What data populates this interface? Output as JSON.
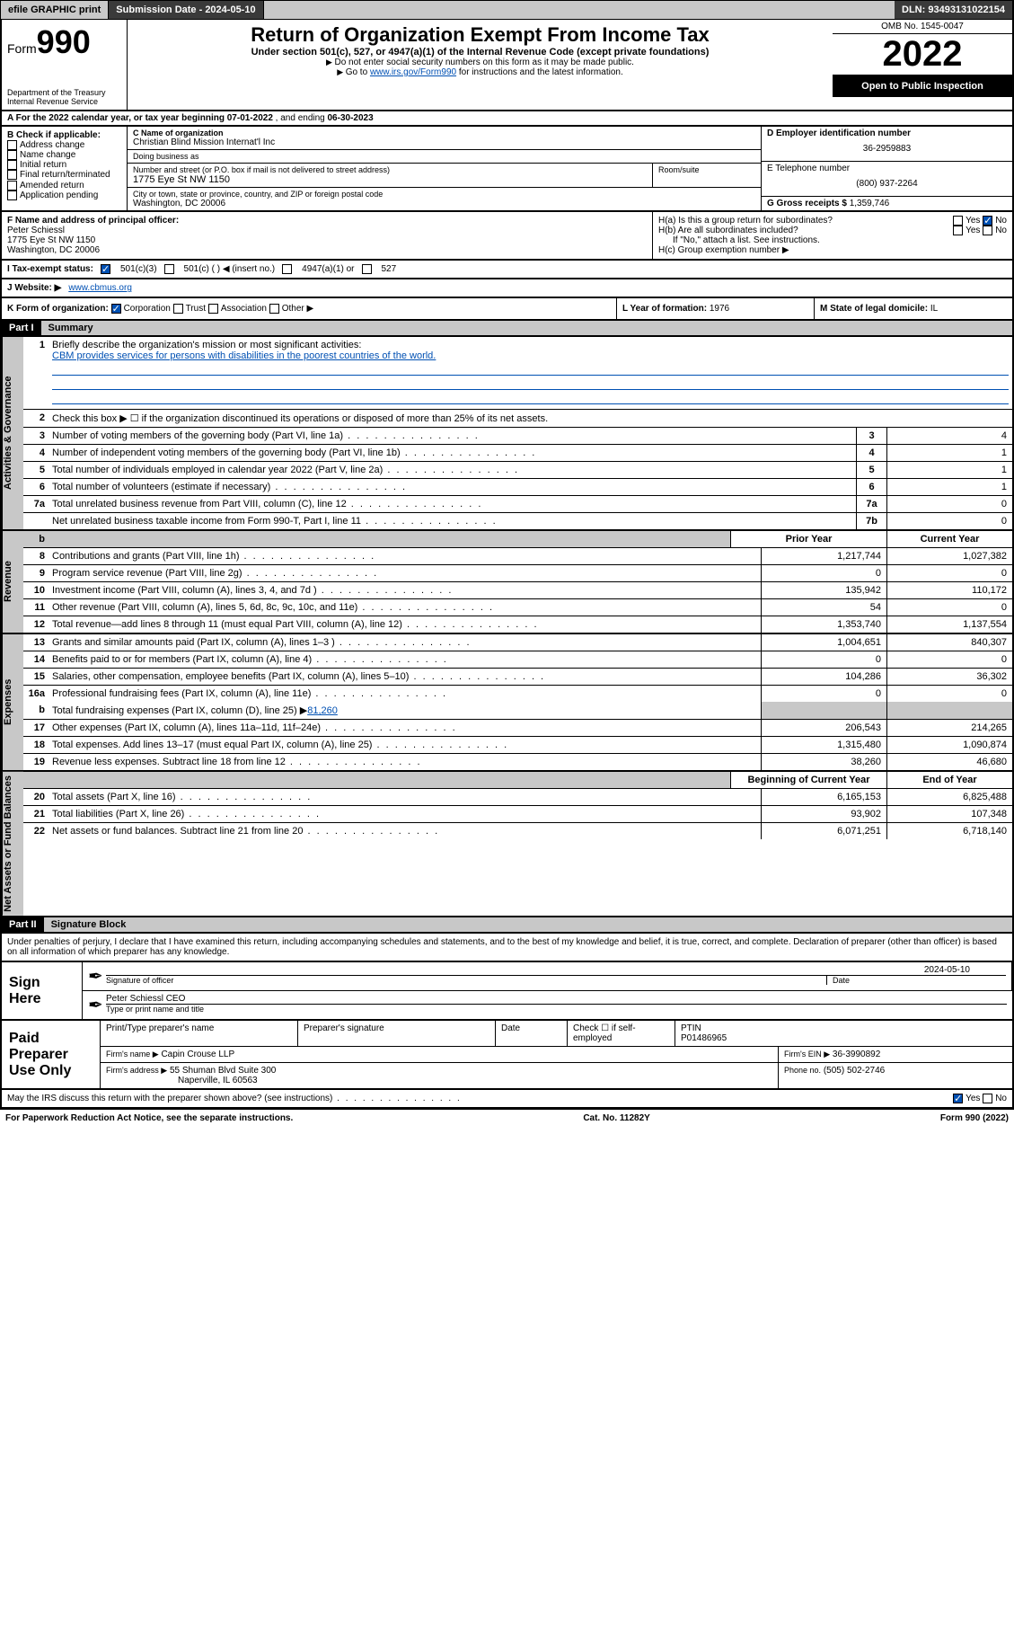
{
  "topbar": {
    "efile": "efile GRAPHIC print",
    "sub_label": "Submission Date - 2024-05-10",
    "dln_label": "DLN: 93493131022154"
  },
  "header": {
    "form_label": "Form",
    "form_num": "990",
    "title": "Return of Organization Exempt From Income Tax",
    "subtitle": "Under section 501(c), 527, or 4947(a)(1) of the Internal Revenue Code (except private foundations)",
    "instr1": "Do not enter social security numbers on this form as it may be made public.",
    "instr2_pre": "Go to ",
    "instr2_link": "www.irs.gov/Form990",
    "instr2_post": " for instructions and the latest information.",
    "dept": "Department of the Treasury",
    "irs": "Internal Revenue Service",
    "omb": "OMB No. 1545-0047",
    "year": "2022",
    "open": "Open to Public Inspection"
  },
  "row_a": {
    "pre": "A For the 2022 calendar year, or tax year beginning ",
    "begin": "07-01-2022",
    "mid": " , and ending ",
    "end": "06-30-2023"
  },
  "col_b": {
    "title": "B Check if applicable:",
    "items": [
      "Address change",
      "Name change",
      "Initial return",
      "Final return/terminated",
      "Amended return",
      "Application pending"
    ]
  },
  "col_c": {
    "name_lbl": "C Name of organization",
    "name": "Christian Blind Mission Internat'l Inc",
    "dba_lbl": "Doing business as",
    "dba": "",
    "street_lbl": "Number and street (or P.O. box if mail is not delivered to street address)",
    "room_lbl": "Room/suite",
    "street": "1775 Eye St NW 1150",
    "city_lbl": "City or town, state or province, country, and ZIP or foreign postal code",
    "city": "Washington, DC  20006"
  },
  "col_de": {
    "ein_lbl": "D Employer identification number",
    "ein": "36-2959883",
    "phone_lbl": "E Telephone number",
    "phone": "(800) 937-2264",
    "gross_lbl": "G Gross receipts $",
    "gross": "1,359,746"
  },
  "block_f": {
    "lbl": "F Name and address of principal officer:",
    "name": "Peter Schiessl",
    "addr1": "1775 Eye St NW 1150",
    "addr2": "Washington, DC  20006"
  },
  "block_h": {
    "ha": "H(a)  Is this a group return for subordinates?",
    "hb": "H(b)  Are all subordinates included?",
    "hb_note": "If \"No,\" attach a list. See instructions.",
    "hc": "H(c)  Group exemption number ▶",
    "yes": "Yes",
    "no": "No"
  },
  "row_i": {
    "lbl": "I   Tax-exempt status:",
    "o1": "501(c)(3)",
    "o2": "501(c) (  ) ◀ (insert no.)",
    "o3": "4947(a)(1) or",
    "o4": "527"
  },
  "row_j": {
    "lbl": "J   Website: ▶",
    "val": "www.cbmus.org"
  },
  "row_k": {
    "k_lbl": "K Form of organization:",
    "corp": "Corporation",
    "trust": "Trust",
    "assoc": "Association",
    "other": "Other ▶",
    "l_lbl": "L Year of formation:",
    "l_val": "1976",
    "m_lbl": "M State of legal domicile:",
    "m_val": "IL"
  },
  "part1": {
    "hdr": "Part I",
    "title": "Summary",
    "q1_lbl": "Briefly describe the organization's mission or most significant activities:",
    "q1_val": "CBM provides services for persons with disabilities in the poorest countries of the world.",
    "q2": "Check this box ▶ ☐ if the organization discontinued its operations or disposed of more than 25% of its net assets.",
    "vtab_ag": "Activities & Governance",
    "vtab_rev": "Revenue",
    "vtab_exp": "Expenses",
    "vtab_na": "Net Assets or Fund Balances",
    "prior": "Prior Year",
    "current": "Current Year",
    "beg": "Beginning of Current Year",
    "eoy": "End of Year",
    "lines_single": [
      {
        "n": "3",
        "t": "Number of voting members of the governing body (Part VI, line 1a)",
        "b": "3",
        "v": "4"
      },
      {
        "n": "4",
        "t": "Number of independent voting members of the governing body (Part VI, line 1b)",
        "b": "4",
        "v": "1"
      },
      {
        "n": "5",
        "t": "Total number of individuals employed in calendar year 2022 (Part V, line 2a)",
        "b": "5",
        "v": "1"
      },
      {
        "n": "6",
        "t": "Total number of volunteers (estimate if necessary)",
        "b": "6",
        "v": "1"
      },
      {
        "n": "7a",
        "t": "Total unrelated business revenue from Part VIII, column (C), line 12",
        "b": "7a",
        "v": "0"
      },
      {
        "n": "",
        "t": "Net unrelated business taxable income from Form 990-T, Part I, line 11",
        "b": "7b",
        "v": "0"
      }
    ],
    "b_row": "b",
    "lines_rev": [
      {
        "n": "8",
        "t": "Contributions and grants (Part VIII, line 1h)",
        "p": "1,217,744",
        "c": "1,027,382"
      },
      {
        "n": "9",
        "t": "Program service revenue (Part VIII, line 2g)",
        "p": "0",
        "c": "0"
      },
      {
        "n": "10",
        "t": "Investment income (Part VIII, column (A), lines 3, 4, and 7d )",
        "p": "135,942",
        "c": "110,172"
      },
      {
        "n": "11",
        "t": "Other revenue (Part VIII, column (A), lines 5, 6d, 8c, 9c, 10c, and 11e)",
        "p": "54",
        "c": "0"
      },
      {
        "n": "12",
        "t": "Total revenue—add lines 8 through 11 (must equal Part VIII, column (A), line 12)",
        "p": "1,353,740",
        "c": "1,137,554"
      }
    ],
    "lines_exp": [
      {
        "n": "13",
        "t": "Grants and similar amounts paid (Part IX, column (A), lines 1–3 )",
        "p": "1,004,651",
        "c": "840,307"
      },
      {
        "n": "14",
        "t": "Benefits paid to or for members (Part IX, column (A), line 4)",
        "p": "0",
        "c": "0"
      },
      {
        "n": "15",
        "t": "Salaries, other compensation, employee benefits (Part IX, column (A), lines 5–10)",
        "p": "104,286",
        "c": "36,302"
      },
      {
        "n": "16a",
        "t": "Professional fundraising fees (Part IX, column (A), line 11e)",
        "p": "0",
        "c": "0"
      }
    ],
    "line16b_n": "b",
    "line16b_t": "Total fundraising expenses (Part IX, column (D), line 25) ▶",
    "line16b_v": "81,260",
    "lines_exp2": [
      {
        "n": "17",
        "t": "Other expenses (Part IX, column (A), lines 11a–11d, 11f–24e)",
        "p": "206,543",
        "c": "214,265"
      },
      {
        "n": "18",
        "t": "Total expenses. Add lines 13–17 (must equal Part IX, column (A), line 25)",
        "p": "1,315,480",
        "c": "1,090,874"
      },
      {
        "n": "19",
        "t": "Revenue less expenses. Subtract line 18 from line 12",
        "p": "38,260",
        "c": "46,680"
      }
    ],
    "lines_na": [
      {
        "n": "20",
        "t": "Total assets (Part X, line 16)",
        "p": "6,165,153",
        "c": "6,825,488"
      },
      {
        "n": "21",
        "t": "Total liabilities (Part X, line 26)",
        "p": "93,902",
        "c": "107,348"
      },
      {
        "n": "22",
        "t": "Net assets or fund balances. Subtract line 21 from line 20",
        "p": "6,071,251",
        "c": "6,718,140"
      }
    ]
  },
  "part2": {
    "hdr": "Part II",
    "title": "Signature Block",
    "decl": "Under penalties of perjury, I declare that I have examined this return, including accompanying schedules and statements, and to the best of my knowledge and belief, it is true, correct, and complete. Declaration of preparer (other than officer) is based on all information of which preparer has any knowledge.",
    "sign_here": "Sign Here",
    "sig_officer": "Signature of officer",
    "sig_date_lbl": "Date",
    "sig_date": "2024-05-10",
    "officer_name": "Peter Schiessl CEO",
    "type_name": "Type or print name and title",
    "paid": "Paid Preparer Use Only",
    "prep_name_lbl": "Print/Type preparer's name",
    "prep_sig_lbl": "Preparer's signature",
    "date_lbl": "Date",
    "check_lbl": "Check ☐ if self-employed",
    "ptin_lbl": "PTIN",
    "ptin": "P01486965",
    "firm_name_lbl": "Firm's name  ▶",
    "firm_name": "Capin Crouse LLP",
    "firm_ein_lbl": "Firm's EIN ▶",
    "firm_ein": "36-3990892",
    "firm_addr_lbl": "Firm's address ▶",
    "firm_addr1": "55 Shuman Blvd Suite 300",
    "firm_addr2": "Naperville, IL  60563",
    "firm_phone_lbl": "Phone no.",
    "firm_phone": "(505) 502-2746",
    "discuss": "May the IRS discuss this return with the preparer shown above? (see instructions)",
    "yes": "Yes",
    "no": "No"
  },
  "footer": {
    "left": "For Paperwork Reduction Act Notice, see the separate instructions.",
    "mid": "Cat. No. 11282Y",
    "right": "Form 990 (2022)"
  }
}
